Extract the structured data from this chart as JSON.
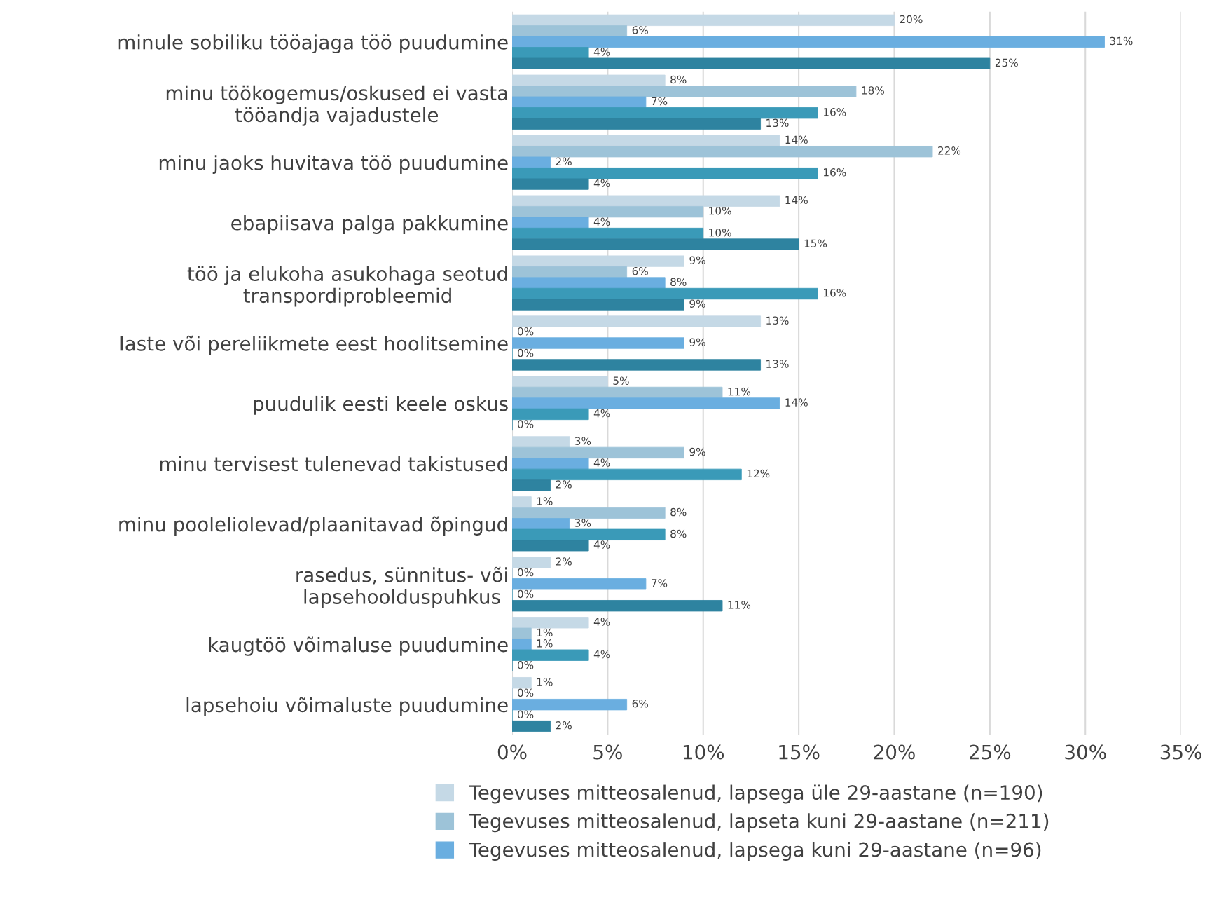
{
  "chart_data": {
    "type": "bar",
    "orientation": "horizontal",
    "categories": [
      "minule sobiliku tööajaga töö puudumine",
      "minu töökogemus/oskused ei vasta tööandja vajadustele",
      "minu jaoks huvitava töö puudumine",
      "ebapiisava palga pakkumine",
      "töö ja elukoha asukohaga seotud transpordiprobleemid",
      "laste või pereliikmete eest hoolitsemine",
      "puudulik eesti keele oskus",
      "minu tervisest tulenevad takistused",
      "minu pooleliolevad/plaanitavad õpingud",
      "rasedus, sünnitus- või lapsehoolduspuhkus",
      "kaugtöö võimaluse puudumine",
      "lapsehoiu võimaluste puudumine"
    ],
    "series": [
      {
        "name": "Tegevuses mitteosalenud, lapsega üle 29-aastane (n=190)",
        "color": "#c5d9e6",
        "values": [
          20,
          8,
          14,
          14,
          9,
          13,
          5,
          3,
          1,
          2,
          4,
          1
        ],
        "value_labels": [
          "20%",
          "8%",
          "14%",
          "14%",
          "9%",
          "13%",
          "5%",
          "3%",
          "1%",
          "2%",
          "4%",
          "1%"
        ]
      },
      {
        "name": "Tegevuses mitteosalenud, lapseta kuni 29-aastane (n=211)",
        "color": "#9dc3d8",
        "values": [
          6,
          18,
          22,
          10,
          6,
          0,
          11,
          9,
          8,
          0,
          1,
          0
        ],
        "value_labels": [
          "6%",
          "18%",
          "22%",
          "10%",
          "6%",
          "0%",
          "11%",
          "9%",
          "8%",
          "0%",
          "1%",
          "0%"
        ]
      },
      {
        "name": "Tegevuses mitteosalenud, lapsega kuni 29-aastane (n=96)",
        "color": "#6aaee0",
        "values": [
          31,
          7,
          2,
          4,
          8,
          9,
          14,
          4,
          3,
          7,
          1,
          6
        ],
        "value_labels": [
          "31%",
          "7%",
          "2%",
          "4%",
          "8%",
          "9%",
          "14%",
          "4%",
          "3%",
          "7%",
          "1%",
          "6%"
        ]
      },
      {
        "color": "#3a9ab8",
        "values": [
          4,
          16,
          16,
          10,
          16,
          0,
          4,
          12,
          8,
          0,
          4,
          0
        ],
        "value_labels": [
          "4%",
          "16%",
          "16%",
          "10%",
          "16%",
          "0%",
          "4%",
          "12%",
          "8%",
          "0%",
          "4%",
          "0%"
        ]
      },
      {
        "color": "#2e83a0",
        "values": [
          25,
          13,
          4,
          15,
          9,
          13,
          0,
          2,
          4,
          11,
          0,
          2
        ],
        "value_labels": [
          "25%",
          "13%",
          "4%",
          "15%",
          "9%",
          "13%",
          "0%",
          "2%",
          "4%",
          "11%",
          "0%",
          "2%"
        ]
      }
    ],
    "xlim": [
      0,
      35
    ],
    "xticks": [
      {
        "value": 0,
        "label": "0%"
      },
      {
        "value": 5,
        "label": "5%"
      },
      {
        "value": 10,
        "label": "10%"
      },
      {
        "value": 15,
        "label": "15%"
      },
      {
        "value": 20,
        "label": "20%"
      },
      {
        "value": 25,
        "label": "25%"
      },
      {
        "value": 30,
        "label": "30%"
      },
      {
        "value": 35,
        "label": "35%"
      }
    ],
    "grid": "x",
    "legend": "bottom"
  }
}
